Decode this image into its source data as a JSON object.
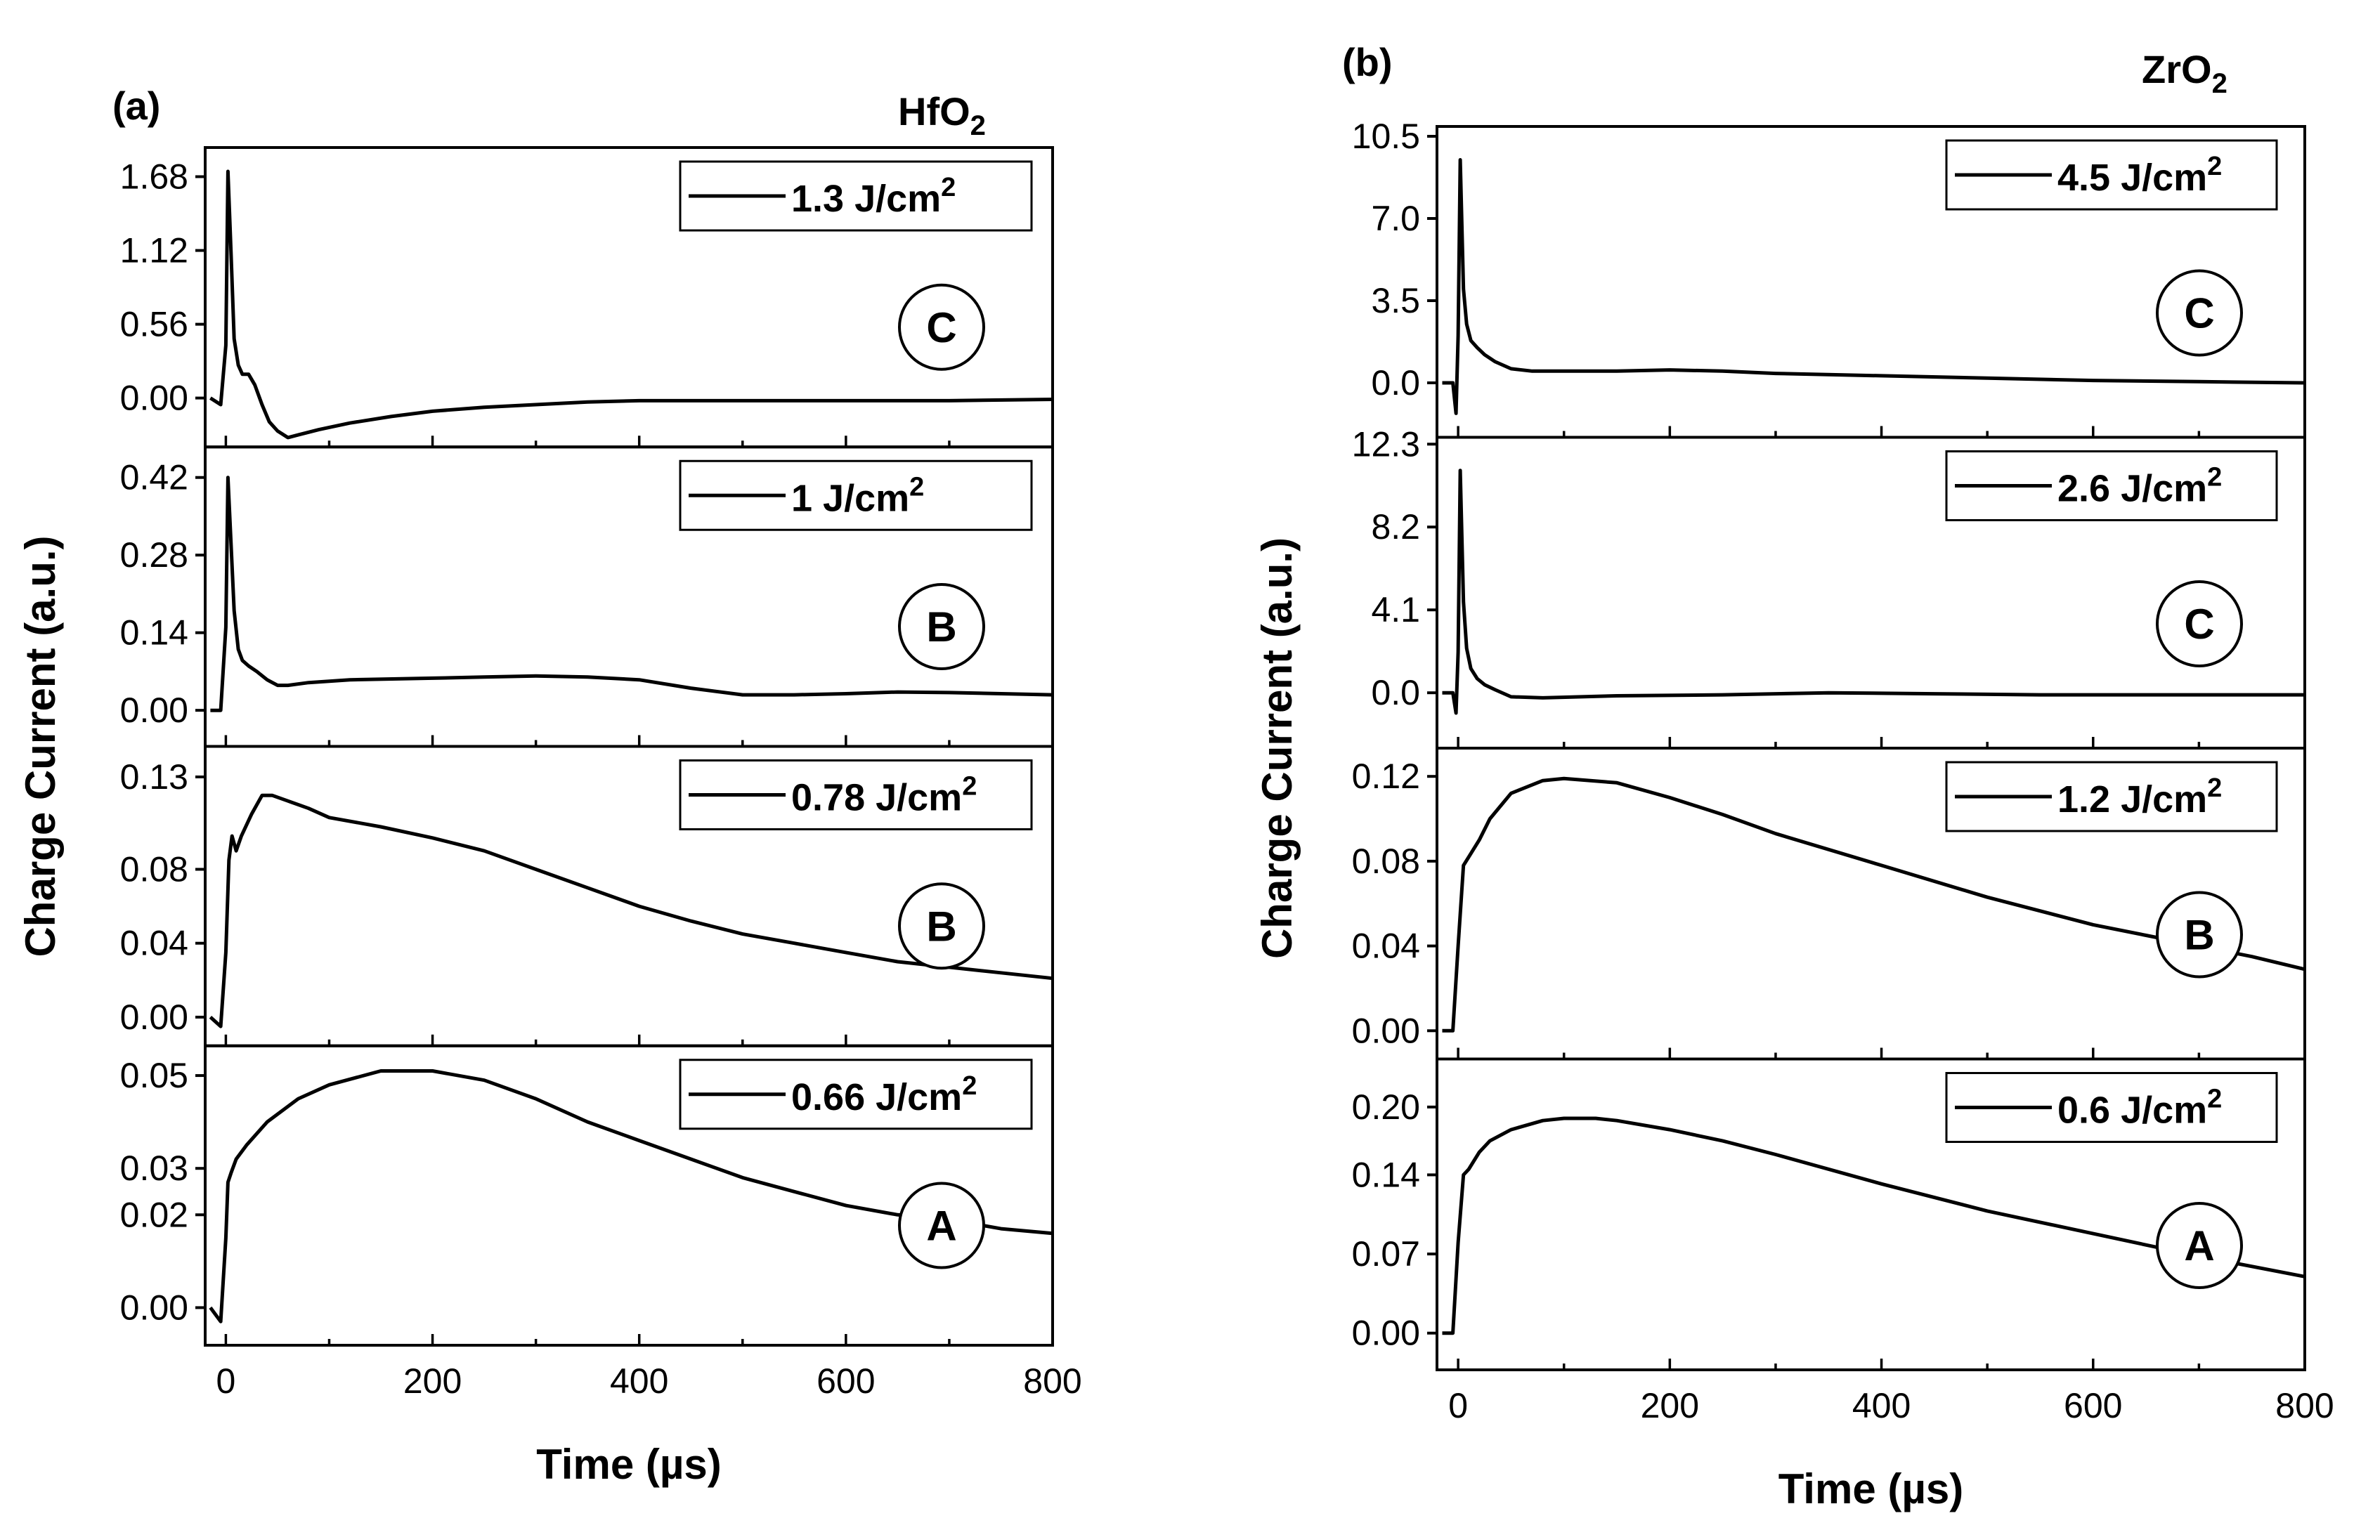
{
  "chart_data": [
    {
      "panel_label": "(a)",
      "material": "HfO",
      "material_sub": "2",
      "type": "line",
      "xlabel": "Time (µs)",
      "ylabel": "Charge Current (a.u.)",
      "xlim": [
        -20,
        800
      ],
      "xticks": [
        "0",
        "200",
        "400",
        "600",
        "800"
      ],
      "subplots": [
        {
          "legend": "1.3 J/cm",
          "legend_sup": "2",
          "tag": "C",
          "ylim": [
            -0.35,
            1.88
          ],
          "yticks": [
            "0.00",
            "0.56",
            "1.12",
            "1.68"
          ],
          "series": {
            "x": [
              -15,
              -5,
              0,
              2,
              5,
              8,
              12,
              16,
              22,
              28,
              35,
              42,
              50,
              60,
              70,
              90,
              120,
              160,
              200,
              250,
              300,
              350,
              400,
              500,
              600,
              700,
              800
            ],
            "y": [
              0.0,
              -0.05,
              0.4,
              1.72,
              1.1,
              0.45,
              0.25,
              0.18,
              0.18,
              0.1,
              -0.05,
              -0.18,
              -0.25,
              -0.3,
              -0.28,
              -0.24,
              -0.19,
              -0.14,
              -0.1,
              -0.07,
              -0.05,
              -0.03,
              -0.02,
              -0.02,
              -0.02,
              -0.02,
              -0.01
            ]
          }
        },
        {
          "legend": "1 J/cm",
          "legend_sup": "2",
          "tag": "B",
          "ylim": [
            -0.06,
            0.47
          ],
          "yticks": [
            "0.00",
            "0.14",
            "0.28",
            "0.42"
          ],
          "series": {
            "x": [
              -15,
              -5,
              0,
              2,
              5,
              8,
              12,
              16,
              22,
              30,
              40,
              50,
              60,
              80,
              120,
              200,
              250,
              300,
              350,
              400,
              450,
              500,
              550,
              600,
              650,
              700,
              800
            ],
            "y": [
              0.0,
              0.0,
              0.15,
              0.42,
              0.3,
              0.18,
              0.11,
              0.09,
              0.08,
              0.07,
              0.055,
              0.045,
              0.045,
              0.05,
              0.055,
              0.058,
              0.06,
              0.062,
              0.06,
              0.055,
              0.04,
              0.028,
              0.028,
              0.03,
              0.033,
              0.032,
              0.028
            ]
          }
        },
        {
          "legend": "0.78 J/cm",
          "legend_sup": "2",
          "tag": "B",
          "ylim": [
            -0.014,
            0.145
          ],
          "yticks": [
            "0.00",
            "0.04",
            "0.08",
            "0.13"
          ],
          "series": {
            "x": [
              -15,
              -5,
              0,
              3,
              6,
              10,
              15,
              25,
              35,
              45,
              60,
              80,
              100,
              150,
              200,
              250,
              300,
              350,
              400,
              450,
              500,
              550,
              600,
              650,
              700,
              750,
              800
            ],
            "y": [
              0.0,
              -0.005,
              0.035,
              0.085,
              0.098,
              0.09,
              0.098,
              0.11,
              0.12,
              0.12,
              0.117,
              0.113,
              0.108,
              0.103,
              0.097,
              0.09,
              0.08,
              0.07,
              0.06,
              0.052,
              0.045,
              0.04,
              0.035,
              0.03,
              0.027,
              0.024,
              0.021
            ]
          }
        },
        {
          "legend": "0.66 J/cm",
          "legend_sup": "2",
          "tag": "A",
          "ylim": [
            -0.0075,
            0.0558
          ],
          "yticks": [
            "0.00",
            "0.02",
            "0.03",
            "0.05"
          ],
          "series": {
            "x": [
              -15,
              -5,
              0,
              2,
              5,
              10,
              20,
              40,
              70,
              100,
              150,
              200,
              250,
              300,
              350,
              400,
              450,
              500,
              550,
              600,
              650,
              700,
              750,
              800
            ],
            "y": [
              0.0,
              -0.003,
              0.015,
              0.027,
              0.029,
              0.032,
              0.035,
              0.04,
              0.045,
              0.048,
              0.051,
              0.051,
              0.049,
              0.045,
              0.04,
              0.036,
              0.032,
              0.028,
              0.025,
              0.022,
              0.02,
              0.019,
              0.017,
              0.016
            ]
          }
        }
      ]
    },
    {
      "panel_label": "(b)",
      "material": "ZrO",
      "material_sub": "2",
      "type": "line",
      "xlabel": "Time (µs)",
      "ylabel": "Charge Current (a.u.)",
      "xlim": [
        -20,
        800
      ],
      "xticks": [
        "0",
        "200",
        "400",
        "600",
        "800"
      ],
      "subplots": [
        {
          "legend": "4.5 J/cm",
          "legend_sup": "2",
          "tag": "C",
          "ylim": [
            -2.2,
            10.8
          ],
          "yticks": [
            "0.0",
            "3.5",
            "7.0",
            "10.5"
          ],
          "series": {
            "x": [
              -15,
              -5,
              -2,
              0,
              2,
              5,
              8,
              12,
              18,
              25,
              35,
              50,
              70,
              100,
              150,
              200,
              250,
              300,
              400,
              500,
              600,
              700,
              800
            ],
            "y": [
              0.0,
              0.0,
              -1.3,
              2.0,
              9.5,
              4.0,
              2.5,
              1.8,
              1.5,
              1.2,
              0.9,
              0.6,
              0.5,
              0.5,
              0.5,
              0.55,
              0.5,
              0.4,
              0.3,
              0.2,
              0.1,
              0.05,
              0.0
            ]
          }
        },
        {
          "legend": "2.6 J/cm",
          "legend_sup": "2",
          "tag": "C",
          "ylim": [
            -2.6,
            12.5
          ],
          "yticks": [
            "0.0",
            "4.1",
            "8.2",
            "12.3"
          ],
          "series": {
            "x": [
              -15,
              -5,
              -2,
              0,
              2,
              5,
              8,
              12,
              18,
              25,
              35,
              50,
              80,
              150,
              250,
              350,
              450,
              550,
              650,
              800
            ],
            "y": [
              0.0,
              0.0,
              -1.0,
              2.0,
              11.0,
              4.5,
              2.2,
              1.2,
              0.7,
              0.4,
              0.15,
              -0.2,
              -0.25,
              -0.15,
              -0.1,
              0.0,
              -0.05,
              -0.1,
              -0.1,
              -0.1
            ]
          }
        },
        {
          "legend": "1.2 J/cm",
          "legend_sup": "2",
          "tag": "B",
          "ylim": [
            -0.012,
            0.132
          ],
          "yticks": [
            "0.00",
            "0.04",
            "0.08",
            "0.12"
          ],
          "series": {
            "x": [
              -15,
              -5,
              0,
              5,
              10,
              20,
              30,
              50,
              80,
              100,
              150,
              200,
              250,
              300,
              400,
              500,
              600,
              650,
              700,
              750,
              800
            ],
            "y": [
              0.0,
              0.0,
              0.04,
              0.078,
              0.082,
              0.09,
              0.1,
              0.112,
              0.118,
              0.119,
              0.117,
              0.11,
              0.102,
              0.093,
              0.078,
              0.063,
              0.05,
              0.045,
              0.04,
              0.035,
              0.029
            ]
          }
        },
        {
          "legend": "0.6 J/cm",
          "legend_sup": "2",
          "tag": "A",
          "ylim": [
            -0.03,
            0.24
          ],
          "yticks": [
            "0.00",
            "0.07",
            "0.14",
            "0.20"
          ],
          "series": {
            "x": [
              -15,
              -5,
              0,
              5,
              10,
              20,
              30,
              50,
              80,
              100,
              130,
              150,
              200,
              250,
              300,
              400,
              500,
              600,
              700,
              800
            ],
            "y": [
              0.0,
              0.0,
              0.08,
              0.14,
              0.145,
              0.16,
              0.17,
              0.18,
              0.188,
              0.19,
              0.19,
              0.188,
              0.18,
              0.17,
              0.158,
              0.132,
              0.108,
              0.088,
              0.068,
              0.05
            ]
          }
        }
      ]
    }
  ]
}
